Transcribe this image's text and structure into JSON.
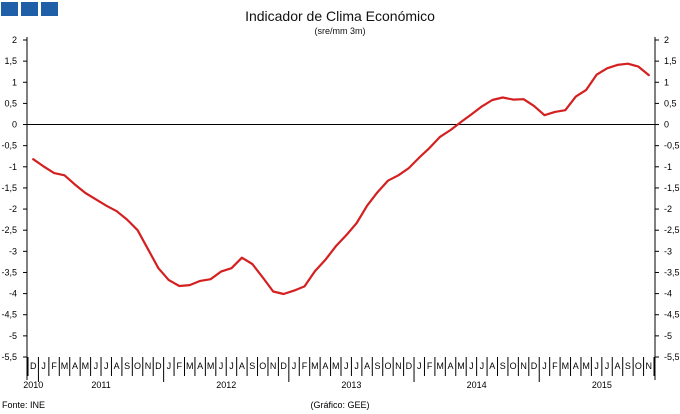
{
  "header": {
    "logo_colors": [
      "#1f5fa8",
      "#1f5fa8",
      "#1f5fa8"
    ]
  },
  "chart_data": {
    "type": "line",
    "title": "Indicador de Clima Económico",
    "subtitle": "(sre/mm 3m)",
    "source": "Fonte: INE",
    "credit": "(Gráfico: GEE)",
    "ylim": [
      -5.5,
      2
    ],
    "y_ticks": [
      2,
      1.5,
      1,
      0.5,
      0,
      -0.5,
      -1,
      -1.5,
      -2,
      -2.5,
      -3,
      -3.5,
      -4,
      -4.5,
      -5,
      -5.5
    ],
    "y_tick_labels": [
      "2",
      "1,5",
      "1",
      "0,5",
      "0",
      "-0,5",
      "-1",
      "-1,5",
      "-2",
      "-2,5",
      "-3",
      "-3,5",
      "-4",
      "-4,5",
      "-5",
      "-5,5"
    ],
    "grid": false,
    "month_letters": [
      "D",
      "J",
      "F",
      "M",
      "A",
      "M",
      "J",
      "J",
      "A",
      "S",
      "O",
      "N",
      "D",
      "J",
      "F",
      "M",
      "A",
      "M",
      "J",
      "J",
      "A",
      "S",
      "O",
      "N",
      "D",
      "J",
      "F",
      "M",
      "A",
      "M",
      "J",
      "J",
      "A",
      "S",
      "O",
      "N",
      "D",
      "J",
      "F",
      "M",
      "A",
      "M",
      "J",
      "J",
      "A",
      "S",
      "O",
      "N",
      "D",
      "J",
      "F",
      "M",
      "A",
      "M",
      "J",
      "J",
      "A",
      "S",
      "O",
      "N"
    ],
    "x": [
      "2010-12",
      "2011-01",
      "2011-02",
      "2011-03",
      "2011-04",
      "2011-05",
      "2011-06",
      "2011-07",
      "2011-08",
      "2011-09",
      "2011-10",
      "2011-11",
      "2011-12",
      "2012-01",
      "2012-02",
      "2012-03",
      "2012-04",
      "2012-05",
      "2012-06",
      "2012-07",
      "2012-08",
      "2012-09",
      "2012-10",
      "2012-11",
      "2012-12",
      "2013-01",
      "2013-02",
      "2013-03",
      "2013-04",
      "2013-05",
      "2013-06",
      "2013-07",
      "2013-08",
      "2013-09",
      "2013-10",
      "2013-11",
      "2013-12",
      "2014-01",
      "2014-02",
      "2014-03",
      "2014-04",
      "2014-05",
      "2014-06",
      "2014-07",
      "2014-08",
      "2014-09",
      "2014-10",
      "2014-11",
      "2014-12",
      "2015-01",
      "2015-02",
      "2015-03",
      "2015-04",
      "2015-05",
      "2015-06",
      "2015-07",
      "2015-08",
      "2015-09",
      "2015-10",
      "2015-11"
    ],
    "year_labels": [
      {
        "label": "2010",
        "month_index": 0
      },
      {
        "label": "2011",
        "month_index": 6
      },
      {
        "label": "2012",
        "month_index": 18
      },
      {
        "label": "2013",
        "month_index": 30
      },
      {
        "label": "2014",
        "month_index": 42
      },
      {
        "label": "2015",
        "month_index": 54
      }
    ],
    "series": [
      {
        "color": "#d42020",
        "values": [
          -0.82,
          -0.99,
          -1.15,
          -1.2,
          -1.42,
          -1.62,
          -1.77,
          -1.92,
          -2.05,
          -2.25,
          -2.5,
          -2.95,
          -3.4,
          -3.68,
          -3.82,
          -3.8,
          -3.7,
          -3.66,
          -3.48,
          -3.4,
          -3.15,
          -3.3,
          -3.62,
          -3.95,
          -4.01,
          -3.93,
          -3.83,
          -3.47,
          -3.2,
          -2.88,
          -2.62,
          -2.33,
          -1.92,
          -1.6,
          -1.33,
          -1.2,
          -1.03,
          -0.78,
          -0.55,
          -0.29,
          -0.13,
          0.06,
          0.24,
          0.43,
          0.58,
          0.64,
          0.59,
          0.6,
          0.44,
          0.22,
          0.3,
          0.34,
          0.66,
          0.82,
          1.18,
          1.33,
          1.41,
          1.44,
          1.37,
          1.17
        ]
      }
    ]
  }
}
